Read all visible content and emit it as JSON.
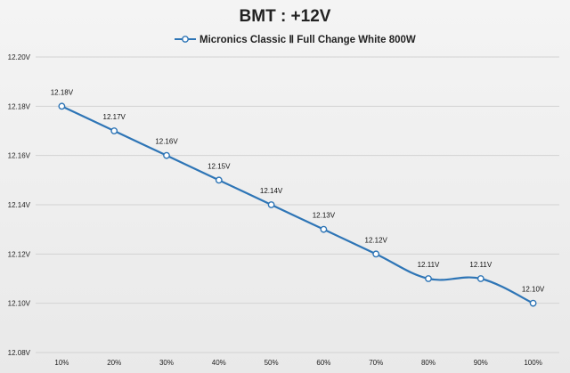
{
  "chart_data": {
    "type": "line",
    "title": "BMT : +12V",
    "xlabel": "",
    "ylabel": "",
    "categories": [
      "10%",
      "20%",
      "30%",
      "40%",
      "50%",
      "60%",
      "70%",
      "80%",
      "90%",
      "100%"
    ],
    "series": [
      {
        "name": "Micronics Classic Ⅱ Full Change White 800W",
        "values": [
          12.18,
          12.17,
          12.16,
          12.15,
          12.14,
          12.13,
          12.12,
          12.11,
          12.11,
          12.1
        ],
        "labels": [
          "12.18V",
          "12.17V",
          "12.16V",
          "12.15V",
          "12.14V",
          "12.13V",
          "12.12V",
          "12.11V",
          "12.11V",
          "12.10V"
        ],
        "color": "#2e75b6"
      }
    ],
    "ylim": [
      12.08,
      12.2
    ],
    "yticks": [
      12.2,
      12.18,
      12.16,
      12.14,
      12.12,
      12.1,
      12.08
    ],
    "ytick_labels": [
      "12.20V",
      "12.18V",
      "12.16V",
      "12.14V",
      "12.12V",
      "12.10V",
      "12.08V"
    ],
    "grid": true,
    "legend_position": "top-center"
  },
  "colors": {
    "line": "#2e75b6",
    "grid": "#d3d3d3",
    "marker_fill": "#ffffff"
  }
}
